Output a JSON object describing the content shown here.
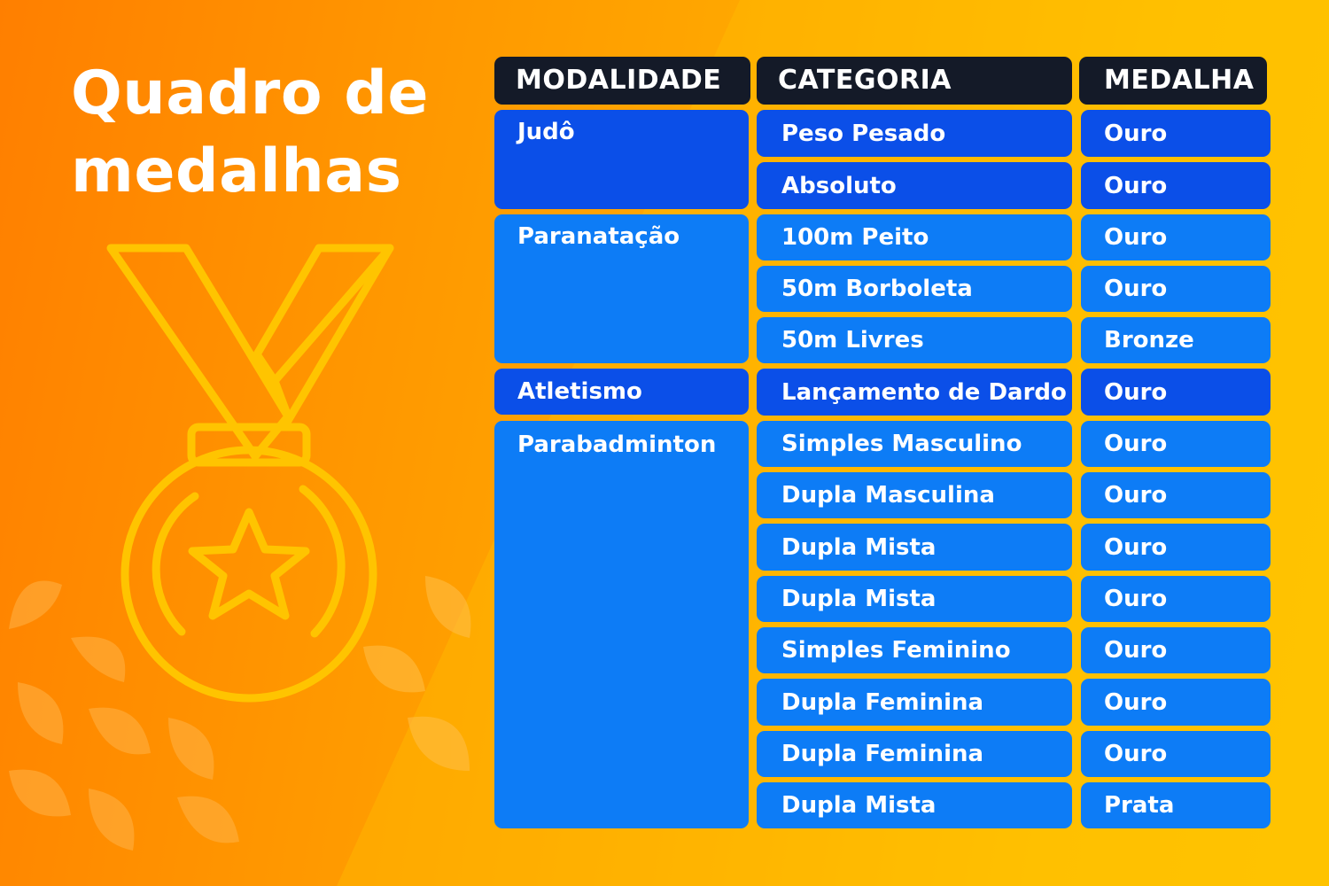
{
  "title": {
    "line1": "Quadro de",
    "line2": "medalhas"
  },
  "icons": {
    "medal": "medal-icon",
    "decorative_petals": "petal-pattern-icon"
  },
  "colors": {
    "header_bg": "#141a28",
    "row_dark": "#0b4fe8",
    "row_light": "#0d7cf6",
    "medal_stroke": "#ffc400",
    "text": "#ffffff"
  },
  "table": {
    "headers": {
      "modalidade": "MODALIDADE",
      "categoria": "CATEGORIA",
      "medalha": "MEDALHA"
    },
    "groups": [
      {
        "modalidade": "Judô",
        "rows": [
          {
            "categoria": "Peso Pesado",
            "medalha": "Ouro"
          },
          {
            "categoria": "Absoluto",
            "medalha": "Ouro"
          }
        ]
      },
      {
        "modalidade": "Paranatação",
        "rows": [
          {
            "categoria": "100m Peito",
            "medalha": "Ouro"
          },
          {
            "categoria": "50m Borboleta",
            "medalha": "Ouro"
          },
          {
            "categoria": "50m Livres",
            "medalha": "Bronze"
          }
        ]
      },
      {
        "modalidade": "Atletismo",
        "rows": [
          {
            "categoria": "Lançamento de Dardo",
            "medalha": "Ouro"
          }
        ]
      },
      {
        "modalidade": "Parabadminton",
        "rows": [
          {
            "categoria": "Simples Masculino",
            "medalha": "Ouro"
          },
          {
            "categoria": "Dupla Masculina",
            "medalha": "Ouro"
          },
          {
            "categoria": "Dupla Mista",
            "medalha": "Ouro"
          },
          {
            "categoria": "Dupla Mista",
            "medalha": "Ouro"
          },
          {
            "categoria": "Simples Feminino",
            "medalha": "Ouro"
          },
          {
            "categoria": "Dupla Feminina",
            "medalha": "Ouro"
          },
          {
            "categoria": "Dupla Feminina",
            "medalha": "Ouro"
          },
          {
            "categoria": "Dupla Mista",
            "medalha": "Prata"
          }
        ]
      }
    ]
  }
}
